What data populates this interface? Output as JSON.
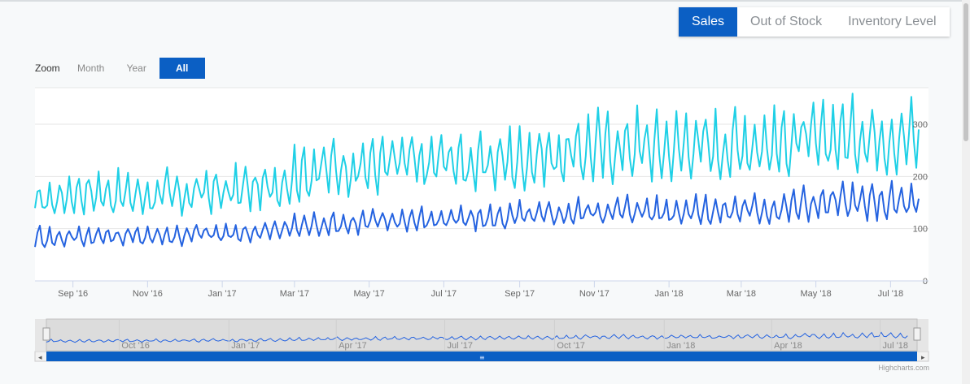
{
  "tabs": [
    {
      "label": "Sales",
      "active": true
    },
    {
      "label": "Out of Stock",
      "active": false
    },
    {
      "label": "Inventory Level",
      "active": false
    }
  ],
  "zoom": {
    "label": "Zoom",
    "buttons": [
      {
        "label": "Month",
        "active": false
      },
      {
        "label": "Year",
        "active": false
      },
      {
        "label": "All",
        "active": true
      }
    ]
  },
  "credits": "Highcharts.com",
  "colors": {
    "series_a": "#1fd0e6",
    "series_b": "#2563e0",
    "accent": "#0b5fc4"
  },
  "chart_data": {
    "type": "line",
    "x_range": [
      "2016-08-01",
      "2018-08-01"
    ],
    "ylim": [
      0,
      370
    ],
    "yticks": [
      0,
      100,
      200,
      300
    ],
    "xticks": [
      {
        "label": "Sep '16",
        "date": "2016-09-01"
      },
      {
        "label": "Nov '16",
        "date": "2016-11-01"
      },
      {
        "label": "Jan '17",
        "date": "2017-01-01"
      },
      {
        "label": "Mar '17",
        "date": "2017-03-01"
      },
      {
        "label": "May '17",
        "date": "2017-05-01"
      },
      {
        "label": "Jul '17",
        "date": "2017-07-01"
      },
      {
        "label": "Sep '17",
        "date": "2017-09-01"
      },
      {
        "label": "Nov '17",
        "date": "2017-11-01"
      },
      {
        "label": "Jan '18",
        "date": "2018-01-01"
      },
      {
        "label": "Mar '18",
        "date": "2018-03-01"
      },
      {
        "label": "May '18",
        "date": "2018-05-01"
      },
      {
        "label": "Jul '18",
        "date": "2018-07-01"
      }
    ],
    "navigator_ticks": [
      {
        "label": "Oct '16",
        "date": "2016-10-01"
      },
      {
        "label": "Jan '17",
        "date": "2017-01-01"
      },
      {
        "label": "Apr '17",
        "date": "2017-04-01"
      },
      {
        "label": "Jul '17",
        "date": "2017-07-01"
      },
      {
        "label": "Oct '17",
        "date": "2017-10-01"
      },
      {
        "label": "Jan '18",
        "date": "2018-01-01"
      },
      {
        "label": "Apr '18",
        "date": "2018-04-01"
      },
      {
        "label": "Jul '18",
        "date": "2018-07-01"
      }
    ],
    "series": [
      {
        "color": "#1fd0e6",
        "x": [
          "2016-08-01",
          "2016-08-16",
          "2016-09-01",
          "2016-09-16",
          "2016-10-01",
          "2016-10-16",
          "2016-11-01",
          "2016-11-16",
          "2016-12-01",
          "2016-12-16",
          "2017-01-01",
          "2017-01-16",
          "2017-02-01",
          "2017-02-16",
          "2017-03-01",
          "2017-03-16",
          "2017-04-01",
          "2017-04-16",
          "2017-05-01",
          "2017-05-16",
          "2017-06-01",
          "2017-06-16",
          "2017-07-01",
          "2017-07-16",
          "2017-08-01",
          "2017-08-16",
          "2017-09-01",
          "2017-09-16",
          "2017-10-01",
          "2017-10-16",
          "2017-11-01",
          "2017-11-16",
          "2017-12-01",
          "2017-12-16",
          "2018-01-01",
          "2018-01-16",
          "2018-02-01",
          "2018-02-16",
          "2018-03-01",
          "2018-03-16",
          "2018-04-01",
          "2018-04-16",
          "2018-05-01",
          "2018-05-16",
          "2018-06-01",
          "2018-06-16",
          "2018-07-01",
          "2018-07-16",
          "2018-08-01"
        ],
        "low": [
          115,
          110,
          130,
          125,
          120,
          130,
          115,
          125,
          120,
          130,
          125,
          130,
          135,
          140,
          150,
          155,
          165,
          160,
          160,
          170,
          175,
          165,
          180,
          170,
          165,
          175,
          170,
          180,
          180,
          185,
          190,
          185,
          195,
          190,
          190,
          195,
          200,
          190,
          195,
          200,
          195,
          205,
          200,
          210,
          205,
          215,
          200,
          210,
          205
        ],
        "high": [
          190,
          200,
          205,
          210,
          215,
          200,
          205,
          210,
          200,
          215,
          210,
          220,
          215,
          225,
          255,
          260,
          270,
          265,
          280,
          275,
          285,
          270,
          290,
          280,
          275,
          290,
          285,
          300,
          290,
          305,
          320,
          315,
          325,
          320,
          310,
          325,
          320,
          315,
          330,
          320,
          325,
          335,
          330,
          340,
          345,
          335,
          345,
          340,
          335
        ]
      },
      {
        "color": "#2563e0",
        "x": [
          "2016-08-01",
          "2016-08-16",
          "2016-09-01",
          "2016-09-16",
          "2016-10-01",
          "2016-10-16",
          "2016-11-01",
          "2016-11-16",
          "2016-12-01",
          "2016-12-16",
          "2017-01-01",
          "2017-01-16",
          "2017-02-01",
          "2017-02-16",
          "2017-03-01",
          "2017-03-16",
          "2017-04-01",
          "2017-04-16",
          "2017-05-01",
          "2017-05-16",
          "2017-06-01",
          "2017-06-16",
          "2017-07-01",
          "2017-07-16",
          "2017-08-01",
          "2017-08-16",
          "2017-09-01",
          "2017-09-16",
          "2017-10-01",
          "2017-10-16",
          "2017-11-01",
          "2017-11-16",
          "2017-12-01",
          "2017-12-16",
          "2018-01-01",
          "2018-01-16",
          "2018-02-01",
          "2018-02-16",
          "2018-03-01",
          "2018-03-16",
          "2018-04-01",
          "2018-04-16",
          "2018-05-01",
          "2018-05-16",
          "2018-06-01",
          "2018-06-16",
          "2018-07-01",
          "2018-07-16",
          "2018-08-01"
        ],
        "low": [
          65,
          62,
          68,
          65,
          70,
          66,
          68,
          70,
          66,
          72,
          70,
          72,
          75,
          78,
          82,
          85,
          88,
          86,
          90,
          92,
          94,
          92,
          96,
          94,
          95,
          98,
          96,
          100,
          102,
          104,
          108,
          106,
          110,
          108,
          106,
          110,
          108,
          106,
          110,
          108,
          110,
          112,
          112,
          115,
          116,
          114,
          116,
          114,
          112
        ],
        "high": [
          105,
          100,
          102,
          105,
          100,
          104,
          106,
          102,
          108,
          110,
          106,
          110,
          112,
          115,
          125,
          128,
          130,
          132,
          135,
          138,
          140,
          138,
          142,
          140,
          140,
          145,
          150,
          148,
          152,
          155,
          160,
          158,
          162,
          160,
          158,
          162,
          160,
          158,
          165,
          162,
          165,
          175,
          180,
          185,
          182,
          180,
          185,
          182,
          180
        ]
      }
    ]
  }
}
